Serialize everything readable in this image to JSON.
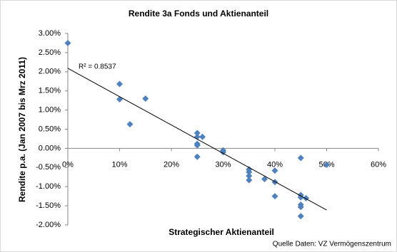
{
  "chart_data": {
    "type": "scatter",
    "title": "Rendite 3a Fonds und Aktienanteil",
    "x_label": "Strategischer Aktienanteil",
    "y_label": "Rendite p.a. (Jan 2007  bis Mrz 2011)",
    "source": "Quelle Daten: VZ Vermögenszentrum",
    "annotation": "R² = 0.8537",
    "color": "#4f81bd",
    "x": [
      0,
      10,
      10,
      12,
      15,
      25,
      25,
      25,
      25,
      25,
      26,
      30,
      30,
      35,
      35,
      35,
      35,
      38,
      40,
      40,
      40,
      45,
      45,
      45,
      45,
      45,
      45,
      46,
      50
    ],
    "y": [
      2.75,
      1.68,
      1.28,
      0.63,
      1.3,
      0.4,
      0.3,
      0.12,
      0.08,
      -0.22,
      0.3,
      -0.05,
      -0.1,
      -0.55,
      -0.62,
      -0.72,
      -0.83,
      -0.8,
      -0.58,
      -0.88,
      -1.25,
      -0.25,
      -1.22,
      -1.28,
      -1.47,
      -1.53,
      -1.77,
      -1.3,
      -0.43
    ],
    "trendline": {
      "x": [
        0,
        50
      ],
      "y": [
        2.09,
        -1.61
      ]
    },
    "xlim": [
      0,
      60
    ],
    "xticks": [
      {
        "value": 0,
        "label": "0%"
      },
      {
        "value": 10,
        "label": "10%"
      },
      {
        "value": 20,
        "label": "20%"
      },
      {
        "value": 30,
        "label": "30%"
      },
      {
        "value": 40,
        "label": "40%"
      },
      {
        "value": 50,
        "label": "50%"
      },
      {
        "value": 60,
        "label": "60%"
      }
    ],
    "ylim": [
      -2,
      3
    ],
    "yticks": [
      {
        "value": -2,
        "label": "-2.00%"
      },
      {
        "value": -1.5,
        "label": "-1.50%"
      },
      {
        "value": -1,
        "label": "-1.00%"
      },
      {
        "value": -0.5,
        "label": "-0.50%"
      },
      {
        "value": 0,
        "label": "0.00%"
      },
      {
        "value": 0.5,
        "label": "0.50%"
      },
      {
        "value": 1,
        "label": "1.00%"
      },
      {
        "value": 1.5,
        "label": "1.50%"
      },
      {
        "value": 2,
        "label": "2.00%"
      },
      {
        "value": 2.5,
        "label": "2.50%"
      },
      {
        "value": 3,
        "label": "3.00%"
      }
    ]
  }
}
